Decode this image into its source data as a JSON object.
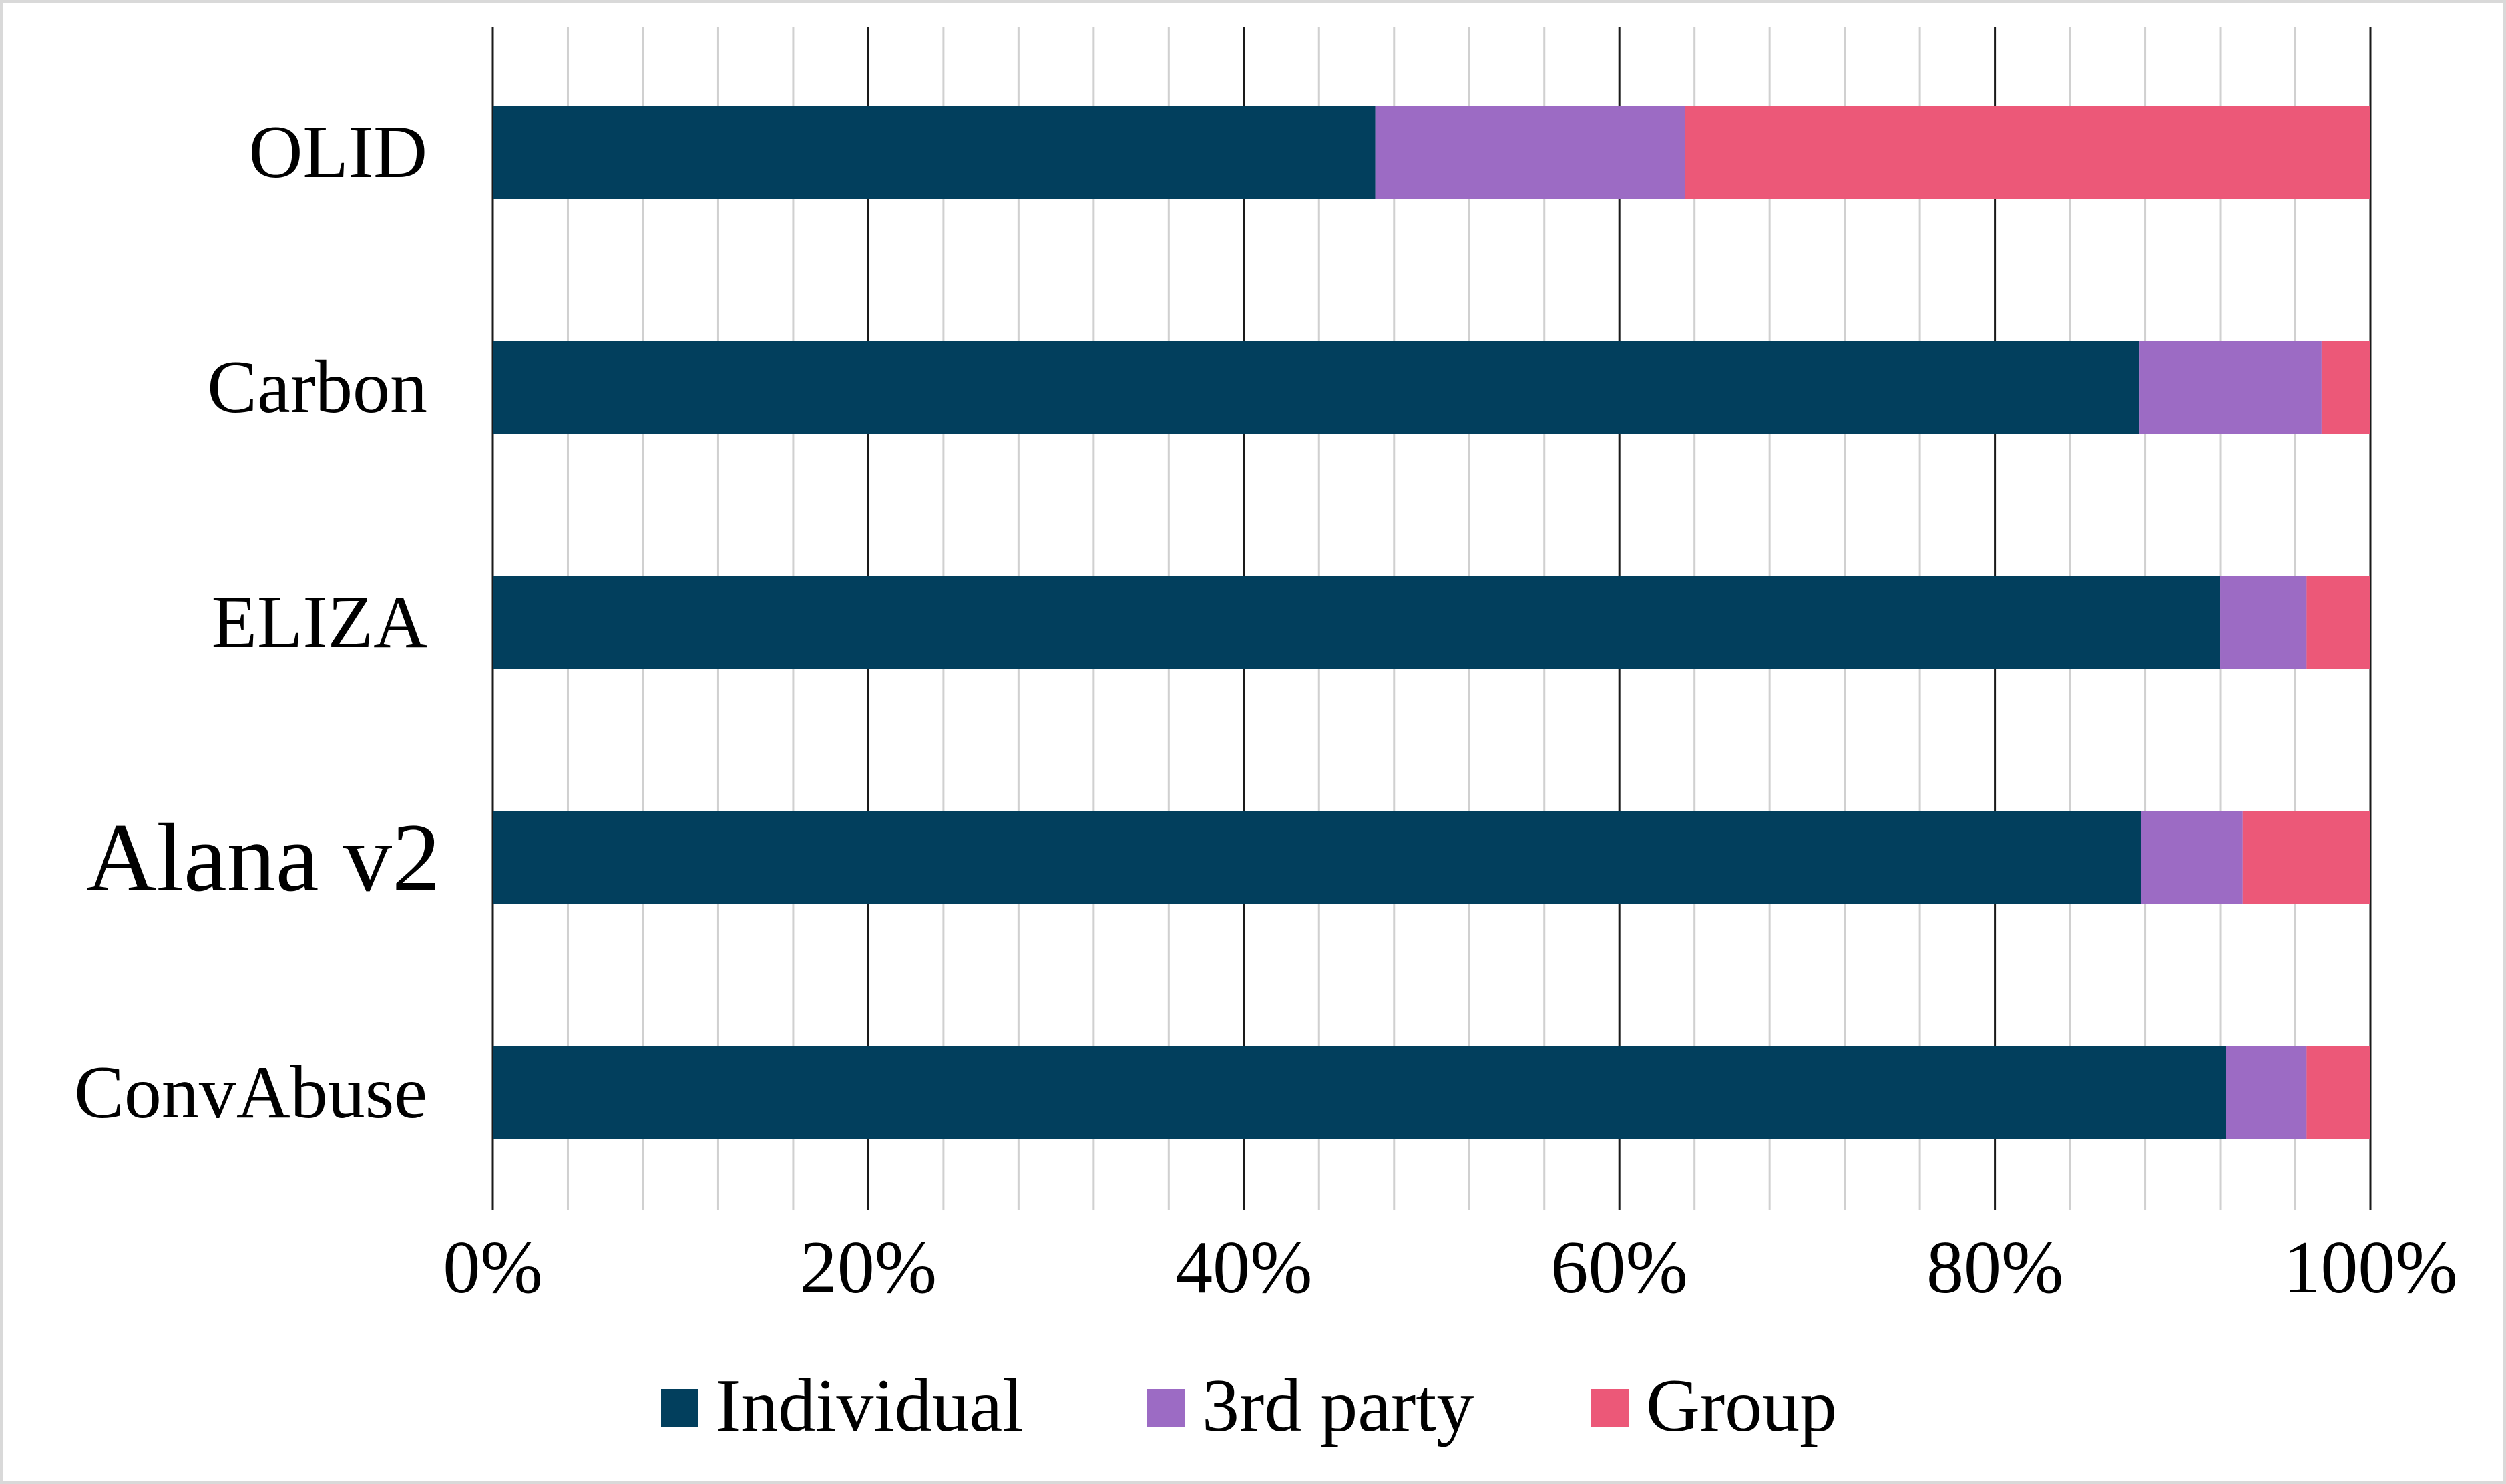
{
  "chart_data": {
    "type": "bar",
    "orientation": "horizontal",
    "stacked": "percent",
    "categories": [
      "OLID",
      "Carbon",
      "ELIZA",
      "Alana v2",
      "ConvAbuse"
    ],
    "series": [
      {
        "name": "Individual",
        "color": "#023f5d",
        "values": [
          47,
          87.7,
          92,
          87.8,
          92.3
        ]
      },
      {
        "name": "3rd party",
        "color": "#9c6bc4",
        "values": [
          16.5,
          9.7,
          4.6,
          5.4,
          4.3
        ]
      },
      {
        "name": "Group",
        "color": "#ec5878",
        "values": [
          36.5,
          2.6,
          3.4,
          6.8,
          3.4
        ]
      }
    ],
    "x_ticks": [
      "0%",
      "20%",
      "40%",
      "60%",
      "80%",
      "100%"
    ],
    "xlim": [
      0,
      100
    ],
    "grid": "vertical major and minor",
    "legend": "bottom"
  }
}
